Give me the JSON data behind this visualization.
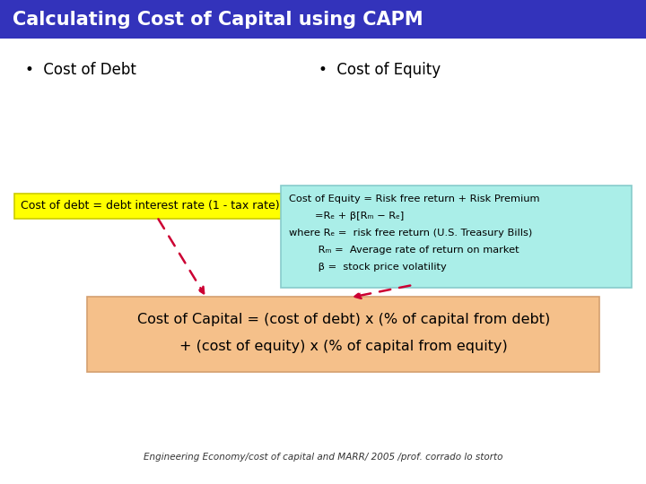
{
  "title": "Calculating Cost of Capital using CAPM",
  "title_bg": "#3333bb",
  "title_fg": "#ffffff",
  "bullet1": "Cost of Debt",
  "bullet2": "Cost of Equity",
  "debt_box_text": "Cost of debt = debt interest rate (1 - tax rate)",
  "debt_box_bg": "#ffff00",
  "debt_box_edge": "#cccc00",
  "equity_box_lines": [
    "Cost of Equity = Risk free return + Risk Premium",
    "        =Rₑ + β[Rₘ − Rₑ]",
    "where Rₑ =  risk free return (U.S. Treasury Bills)",
    "         Rₘ =  Average rate of return on market",
    "         β =  stock price volatility"
  ],
  "equity_box_bg": "#aaeee8",
  "equity_box_edge": "#88cccc",
  "bottom_box_line1": "Cost of Capital = (cost of debt) x (% of capital from debt)",
  "bottom_box_line2": "+ (cost of equity) x (% of capital from equity)",
  "bottom_box_bg": "#f5c08a",
  "bottom_box_edge": "#d4a070",
  "footer": "Engineering Economy/cost of capital and MARR/ 2005 /prof. corrado lo storto",
  "bg_color": "#ffffff",
  "arrow_color": "#cc0033"
}
